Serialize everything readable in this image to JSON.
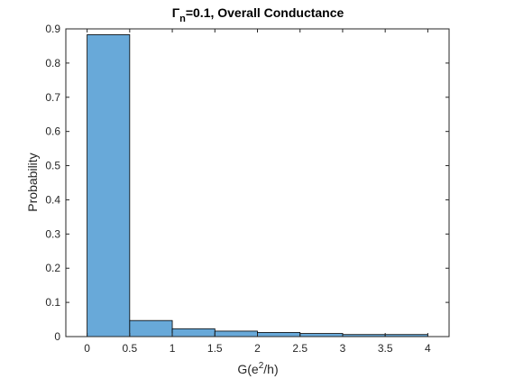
{
  "chart_data": {
    "type": "bar",
    "title": {
      "symbol": "Γ",
      "subscript": "n",
      "rest": "=0.1, Overall Conductance"
    },
    "xlabel": {
      "prefix": "G(e",
      "superscript": "2",
      "suffix": "/h)"
    },
    "ylabel": "Probability",
    "bins": [
      {
        "x0": 0.0,
        "x1": 0.5,
        "value": 0.883
      },
      {
        "x0": 0.5,
        "x1": 1.0,
        "value": 0.047
      },
      {
        "x0": 1.0,
        "x1": 1.5,
        "value": 0.023
      },
      {
        "x0": 1.5,
        "x1": 2.0,
        "value": 0.016
      },
      {
        "x0": 2.0,
        "x1": 2.5,
        "value": 0.012
      },
      {
        "x0": 2.5,
        "x1": 3.0,
        "value": 0.009
      },
      {
        "x0": 3.0,
        "x1": 3.5,
        "value": 0.006
      },
      {
        "x0": 3.5,
        "x1": 4.0,
        "value": 0.006
      }
    ],
    "xlim": [
      -0.25,
      4.25
    ],
    "ylim": [
      0,
      0.9
    ],
    "xticks": [
      0,
      0.5,
      1,
      1.5,
      2,
      2.5,
      3,
      3.5,
      4
    ],
    "xtick_labels": [
      "0",
      "0.5",
      "1",
      "1.5",
      "2",
      "2.5",
      "3",
      "3.5",
      "4"
    ],
    "yticks": [
      0,
      0.1,
      0.2,
      0.3,
      0.4,
      0.5,
      0.6,
      0.7,
      0.8,
      0.9
    ],
    "ytick_labels": [
      "0",
      "0.1",
      "0.2",
      "0.3",
      "0.4",
      "0.5",
      "0.6",
      "0.7",
      "0.8",
      "0.9"
    ],
    "grid": false,
    "bar_color": "#68a9d9",
    "edge_color": "#000000"
  }
}
